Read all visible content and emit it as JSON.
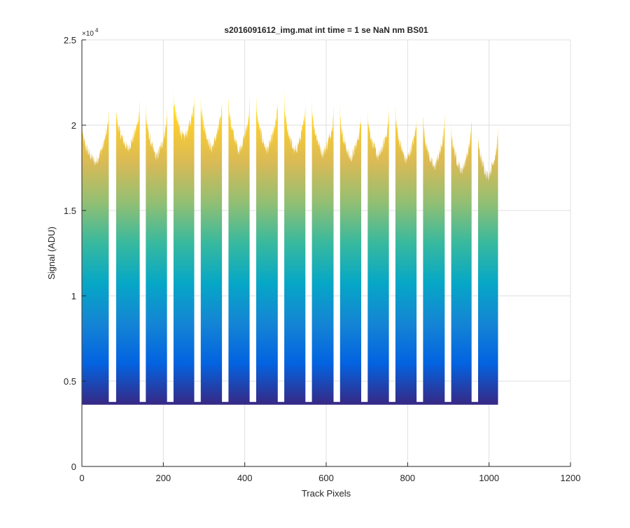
{
  "chart_data": {
    "type": "area",
    "title": "s2016091612_img.mat int time = 1 se  NaN nm BS01",
    "xlabel": "Track Pixels",
    "ylabel": "Signal (ADU)",
    "xlim": [
      0,
      1200
    ],
    "ylim": [
      0,
      25000
    ],
    "x_ticks": [
      0,
      200,
      400,
      600,
      800,
      1000,
      1200
    ],
    "x_tick_labels": [
      "0",
      "200",
      "400",
      "600",
      "800",
      "1000",
      "1200"
    ],
    "y_ticks": [
      0,
      5000,
      10000,
      15000,
      20000,
      25000
    ],
    "y_tick_labels": [
      "0",
      "0.5",
      "1",
      "1.5",
      "2",
      "2.5"
    ],
    "y_exponent_label": "×10",
    "y_exponent_power": "4",
    "grid": true,
    "baseline": 3700,
    "colormap": "parula (color by signal level)",
    "colors": [
      "#352a87",
      "#0363e1",
      "#1485d4",
      "#06a7c6",
      "#38b99e",
      "#92bf73",
      "#d9ba56",
      "#fcce2e",
      "#f9fb0e"
    ],
    "segments": [
      {
        "x_start": 1,
        "x_end": 66,
        "left_peak": 19900,
        "min": 17800,
        "right_peak": 21000
      },
      {
        "x_start": 84,
        "x_end": 142,
        "left_peak": 21100,
        "min": 18600,
        "right_peak": 21500
      },
      {
        "x_start": 157,
        "x_end": 209,
        "left_peak": 21200,
        "min": 18100,
        "right_peak": 21000
      },
      {
        "x_start": 225,
        "x_end": 276,
        "left_peak": 22100,
        "min": 19200,
        "right_peak": 22000
      },
      {
        "x_start": 292,
        "x_end": 344,
        "left_peak": 21900,
        "min": 18600,
        "right_peak": 21700
      },
      {
        "x_start": 360,
        "x_end": 412,
        "left_peak": 21800,
        "min": 18500,
        "right_peak": 21600
      },
      {
        "x_start": 428,
        "x_end": 481,
        "left_peak": 21700,
        "min": 18500,
        "right_peak": 21600
      },
      {
        "x_start": 497,
        "x_end": 549,
        "left_peak": 21700,
        "min": 18400,
        "right_peak": 21500
      },
      {
        "x_start": 565,
        "x_end": 618,
        "left_peak": 21500,
        "min": 18300,
        "right_peak": 21100
      },
      {
        "x_start": 634,
        "x_end": 686,
        "left_peak": 21100,
        "min": 18000,
        "right_peak": 20900
      },
      {
        "x_start": 702,
        "x_end": 754,
        "left_peak": 21000,
        "min": 18100,
        "right_peak": 21000
      },
      {
        "x_start": 770,
        "x_end": 822,
        "left_peak": 21200,
        "min": 17900,
        "right_peak": 20700
      },
      {
        "x_start": 838,
        "x_end": 891,
        "left_peak": 20700,
        "min": 17500,
        "right_peak": 20500
      },
      {
        "x_start": 907,
        "x_end": 957,
        "left_peak": 20200,
        "min": 17300,
        "right_peak": 20400
      },
      {
        "x_start": 973,
        "x_end": 1022,
        "left_peak": 19500,
        "min": 17000,
        "right_peak": 19900
      }
    ]
  }
}
